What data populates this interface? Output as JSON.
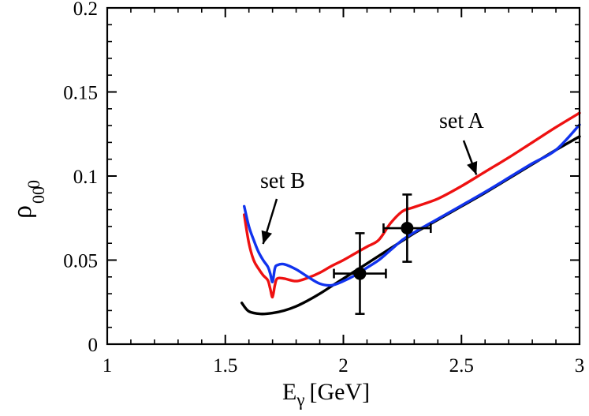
{
  "chart_data": {
    "type": "line",
    "title": "",
    "xlabel": {
      "main": "E",
      "sub": "γ",
      "unit": "[GeV]"
    },
    "ylabel": {
      "main": "ρ",
      "sup": "0",
      "sub": "00"
    },
    "xlim": [
      1,
      3
    ],
    "ylim": [
      0,
      0.2
    ],
    "xticks": [
      1,
      1.5,
      2,
      2.5,
      3
    ],
    "xtick_labels": [
      "1",
      "1.5",
      "2",
      "2.5",
      "3"
    ],
    "yticks": [
      0,
      0.05,
      0.1,
      0.15,
      0.2
    ],
    "ytick_labels": [
      "0",
      "0.05",
      "0.1",
      "0.15",
      "0.2"
    ],
    "grid": false,
    "series": [
      {
        "name": "black",
        "color": "#000000",
        "x": [
          1.57,
          1.6,
          1.65,
          1.7,
          1.75,
          1.8,
          1.85,
          1.9,
          1.95,
          2.0,
          2.05,
          2.1,
          2.15,
          2.2,
          2.25,
          2.3,
          2.4,
          2.5,
          2.6,
          2.7,
          2.8,
          2.9,
          3.0
        ],
        "y": [
          0.0245,
          0.0195,
          0.018,
          0.0185,
          0.02,
          0.0225,
          0.026,
          0.03,
          0.0345,
          0.039,
          0.0435,
          0.048,
          0.0525,
          0.057,
          0.0615,
          0.066,
          0.074,
          0.082,
          0.09,
          0.0985,
          0.107,
          0.1155,
          0.1235
        ]
      },
      {
        "name": "red",
        "color": "#ee1111",
        "x": [
          1.58,
          1.6,
          1.62,
          1.64,
          1.66,
          1.68,
          1.69,
          1.7,
          1.71,
          1.72,
          1.75,
          1.8,
          1.85,
          1.9,
          1.95,
          2.0,
          2.05,
          2.1,
          2.15,
          2.2,
          2.25,
          2.3,
          2.4,
          2.5,
          2.6,
          2.7,
          2.8,
          2.9,
          3.0
        ],
        "y": [
          0.077,
          0.06,
          0.05,
          0.045,
          0.041,
          0.038,
          0.033,
          0.028,
          0.035,
          0.039,
          0.039,
          0.0375,
          0.0395,
          0.0425,
          0.0465,
          0.05,
          0.054,
          0.058,
          0.062,
          0.072,
          0.079,
          0.0815,
          0.0865,
          0.094,
          0.1025,
          0.111,
          0.12,
          0.129,
          0.1375
        ]
      },
      {
        "name": "blue",
        "color": "#1133ee",
        "x": [
          1.58,
          1.6,
          1.62,
          1.64,
          1.66,
          1.68,
          1.69,
          1.7,
          1.71,
          1.72,
          1.75,
          1.8,
          1.85,
          1.9,
          1.95,
          2.0,
          2.05,
          2.1,
          2.15,
          2.2,
          2.25,
          2.3,
          2.4,
          2.5,
          2.6,
          2.7,
          2.8,
          2.9,
          3.0
        ],
        "y": [
          0.082,
          0.07,
          0.062,
          0.055,
          0.05,
          0.046,
          0.042,
          0.037,
          0.045,
          0.047,
          0.0475,
          0.0445,
          0.04,
          0.036,
          0.035,
          0.0375,
          0.041,
          0.0455,
          0.05,
          0.056,
          0.062,
          0.0665,
          0.0745,
          0.0825,
          0.0905,
          0.099,
          0.1075,
          0.1155,
          0.1305
        ]
      }
    ],
    "error_points": [
      {
        "x": 2.07,
        "y": 0.042,
        "xerr": 0.11,
        "yerr": 0.024
      },
      {
        "x": 2.27,
        "y": 0.069,
        "xerr": 0.1,
        "yerr": 0.02
      }
    ],
    "annotations": [
      {
        "text": "set A",
        "target": {
          "x": 2.55,
          "y": 0.097
        }
      },
      {
        "text": "set B",
        "target": {
          "x": 1.65,
          "y": 0.061
        }
      }
    ]
  }
}
